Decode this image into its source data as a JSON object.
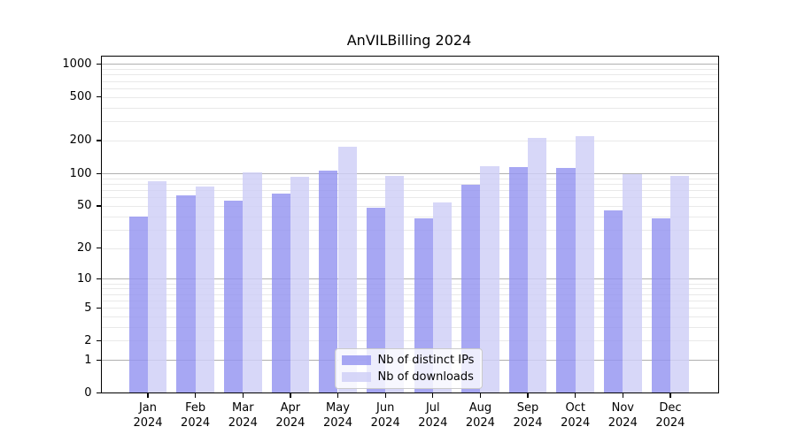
{
  "background": "#ffffff",
  "axes_color": "#000000",
  "chart_data": {
    "type": "bar",
    "title": "AnVILBilling 2024",
    "categories": [
      "Jan 2024",
      "Feb 2024",
      "Mar 2024",
      "Apr 2024",
      "May 2024",
      "Jun 2024",
      "Jul 2024",
      "Aug 2024",
      "Sep 2024",
      "Oct 2024",
      "Nov 2024",
      "Dec 2024"
    ],
    "series": [
      {
        "name": "Nb of distinct IPs",
        "color": "rgba(148,148,240,0.82)",
        "values": [
          40,
          63,
          56,
          65,
          105,
          48,
          38,
          78,
          114,
          112,
          45,
          38
        ]
      },
      {
        "name": "Nb of downloads",
        "color": "rgba(206,206,246,0.82)",
        "values": [
          85,
          76,
          101,
          92,
          175,
          94,
          54,
          117,
          210,
          221,
          98,
          94
        ]
      }
    ],
    "xlabel": "",
    "ylabel": "",
    "y_scale": "log10(1+x)",
    "y_ticks": [
      0,
      1,
      2,
      5,
      10,
      20,
      50,
      100,
      200,
      500,
      1000
    ],
    "ylim": [
      0,
      1200
    ],
    "grid": {
      "major": [
        1,
        10,
        100,
        1000
      ],
      "major_color": "#b0b0b0",
      "minor": [
        2,
        3,
        4,
        5,
        6,
        7,
        8,
        9,
        20,
        30,
        40,
        50,
        60,
        70,
        80,
        90,
        200,
        300,
        400,
        500,
        600,
        700,
        800,
        900
      ],
      "minor_color": "#e9e9e9"
    },
    "legend": {
      "position": "lower center"
    }
  }
}
